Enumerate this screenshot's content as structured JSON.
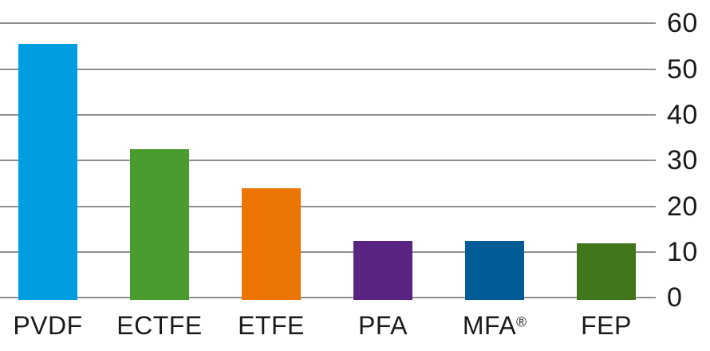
{
  "chart_data": {
    "type": "bar",
    "title": "",
    "xlabel": "",
    "ylabel": "",
    "categories": [
      "PVDF",
      "ECTFE",
      "ETFE",
      "PFA",
      "MFA®",
      "FEP"
    ],
    "values": [
      55.5,
      32.5,
      24,
      12.5,
      12.5,
      12
    ],
    "bar_colors": [
      "#009EE0",
      "#4A9C2E",
      "#EC7504",
      "#5A2582",
      "#005C96",
      "#41761B"
    ],
    "ylim": [
      0,
      60
    ],
    "yticks": [
      "0",
      "10",
      "20",
      "30",
      "40",
      "50",
      "60"
    ],
    "ytick_values": [
      0,
      10,
      20,
      30,
      40,
      50,
      60
    ],
    "ytick_side": "right",
    "grid": "horizontal",
    "legend": "none"
  },
  "colors": {
    "background": "#FFFFFF",
    "gridline": "#8F8F8F",
    "text": "#1A1A1A"
  }
}
